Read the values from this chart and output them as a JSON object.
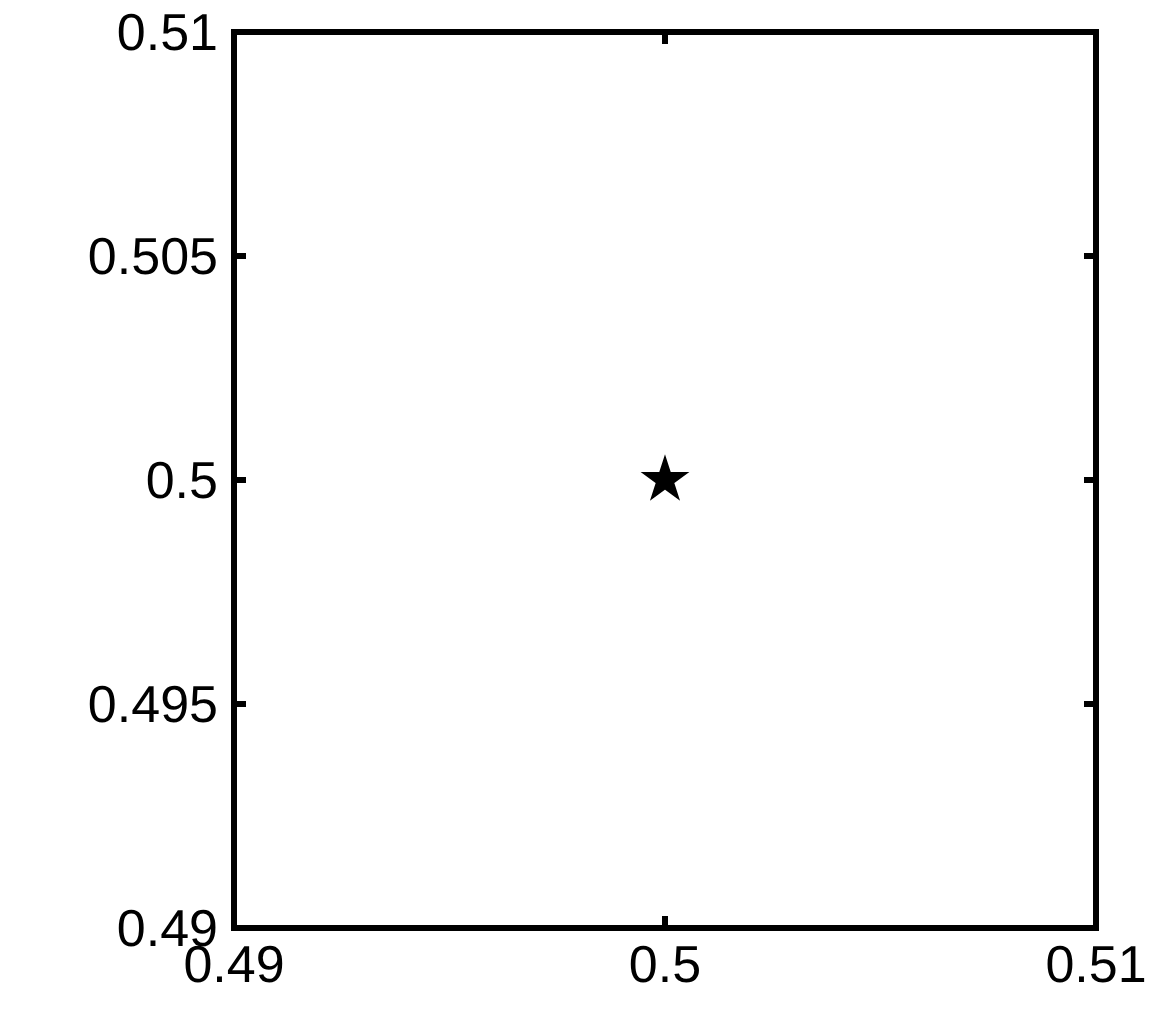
{
  "chart_data": {
    "type": "scatter",
    "x": [
      0.5
    ],
    "series": [
      {
        "color": "#000000",
        "values": [
          0.5
        ]
      }
    ],
    "xlim": [
      0.49,
      0.51
    ],
    "xticks": [
      0.49,
      0.5,
      0.51
    ],
    "ylim": [
      0.49,
      0.51
    ],
    "yticks": [
      0.49,
      0.495,
      0.5,
      0.505,
      0.51
    ],
    "marker": "star",
    "grid": false
  }
}
